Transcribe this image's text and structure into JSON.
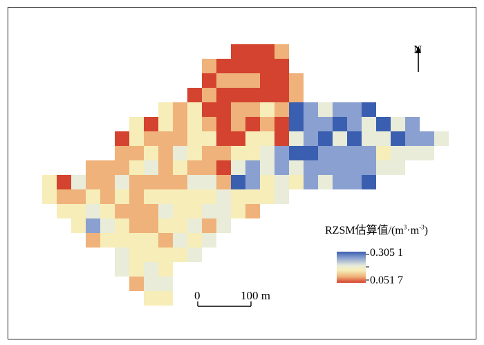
{
  "legend": {
    "title_prefix": "RZSM估算值/(m",
    "sup1": "3",
    "title_middle": "·m",
    "sup2": "-3",
    "title_suffix": ")",
    "max_label": "0.305 1",
    "min_label": "0.051 7",
    "max_value": 0.3051,
    "min_value": 0.0517,
    "colors": [
      "#3a5fb0",
      "#8aa0d0",
      "#e8ecd8",
      "#f7edb8",
      "#efb27a",
      "#d4432f"
    ]
  },
  "north_arrow": {
    "label": "N"
  },
  "scale_bar": {
    "start_label": "0",
    "end_label": "100 m"
  },
  "raster": {
    "rows": [
      "..............xxxx..",
      "............xxxxxx..",
      "............xxxxxxx.",
      "...........xxxxxxxx.",
      ".........xxxxxxxxxxxxxxx",
      ".......xxxxxxxxxxxxxxxxxxxx",
      "......xxxxxxxxxxxxxxxxxxxxxxx",
      "......xxxxxxxxxxxxxxxxxxxxxx",
      "....xxxxxxxxxxxxxxxxxxxxxx",
      ".xxxxxxxxxxxxxxxxxxxxxxx",
      ".xxxxxxxxxxxxxxxxx",
      "..xxxxxxxxxxxxxx",
      "...xxxxxxxxxxx",
      "....xxxxxxxxx",
      "......xxxxxx",
      "......xxxx",
      ".......xxx",
      "........xx"
    ]
  }
}
